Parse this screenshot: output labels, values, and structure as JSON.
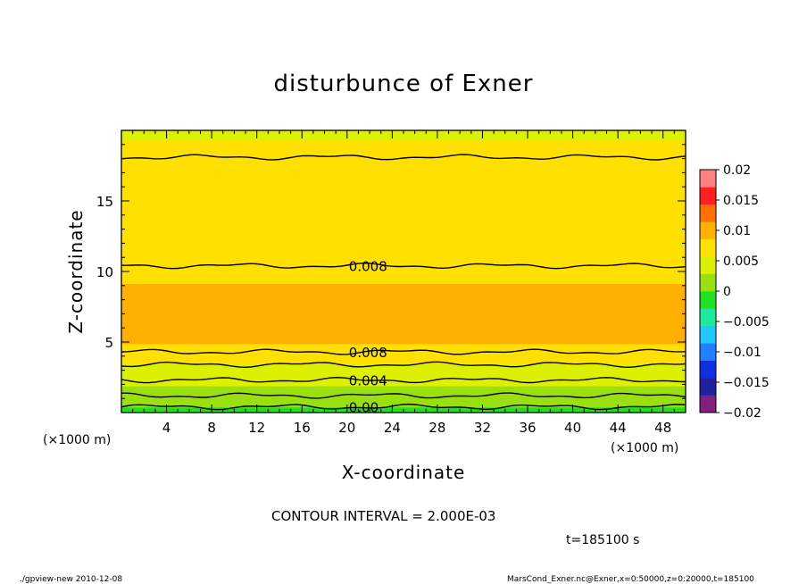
{
  "chart_data": {
    "type": "heatmap",
    "title": "disturbunce of Exner",
    "xlabel": "X-coordinate",
    "ylabel": "Z-coordinate",
    "x_unit": "(×1000 m)",
    "x_unit_right": "(×1000 m)",
    "xlim": [
      0,
      50
    ],
    "ylim": [
      0,
      20
    ],
    "xticks": [
      "4",
      "8",
      "12",
      "16",
      "20",
      "24",
      "28",
      "32",
      "36",
      "40",
      "44",
      "48"
    ],
    "yticks": [
      "5",
      "10",
      "15"
    ],
    "colorbar": {
      "range": [
        -0.02,
        0.02
      ],
      "ticks": [
        "0.02",
        "0.015",
        "0.01",
        "0.005",
        "0",
        "−0.005",
        "−0.01",
        "−0.015",
        "−0.02"
      ],
      "colors": [
        "#7f207f",
        "#2020a0",
        "#1030e0",
        "#2080ff",
        "#20c8ff",
        "#20e8a0",
        "#20e020",
        "#9ae010",
        "#dcf000",
        "#ffe000",
        "#ffb000",
        "#ff7000",
        "#ff2020",
        "#ff8080"
      ]
    },
    "profile": {
      "z": [
        0,
        0.4,
        1.2,
        2.0,
        2.8,
        3.6,
        4.4,
        5.2,
        6.5,
        8.0,
        10.5,
        14.0,
        18.2,
        20.0
      ],
      "value": [
        -0.001,
        0.0,
        0.002,
        0.003,
        0.004,
        0.006,
        0.008,
        0.009,
        0.0095,
        0.009,
        0.008,
        0.007,
        0.006,
        0.0055
      ]
    },
    "contours": [
      {
        "z": 0.4,
        "label": "0.00"
      },
      {
        "z": 1.2,
        "label": ""
      },
      {
        "z": 2.3,
        "label": "0.004"
      },
      {
        "z": 3.4,
        "label": ""
      },
      {
        "z": 4.3,
        "label": "0.008"
      },
      {
        "z": 10.4,
        "label": "0.008"
      },
      {
        "z": 18.1,
        "label": ""
      }
    ],
    "contour_interval": "CONTOUR INTERVAL = 2.000E-03",
    "time_label": "t=185100 s"
  },
  "footer": {
    "left": "./gpview-new  2010-12-08",
    "right": "MarsCond_Exner.nc@Exner,x=0:50000,z=0:20000,t=185100"
  }
}
